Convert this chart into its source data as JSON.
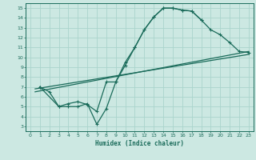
{
  "xlabel": "Humidex (Indice chaleur)",
  "bg_color": "#cce8e2",
  "grid_color": "#aad4cc",
  "line_color": "#1a6b5a",
  "xlim": [
    -0.5,
    23.5
  ],
  "ylim": [
    2.5,
    15.5
  ],
  "xticks": [
    0,
    1,
    2,
    3,
    4,
    5,
    6,
    7,
    8,
    9,
    10,
    11,
    12,
    13,
    14,
    15,
    16,
    17,
    18,
    19,
    20,
    21,
    22,
    23
  ],
  "yticks": [
    3,
    4,
    5,
    6,
    7,
    8,
    9,
    10,
    11,
    12,
    13,
    14,
    15
  ],
  "line1_x": [
    1,
    2,
    3,
    4,
    5,
    6,
    7,
    8,
    9,
    10,
    11,
    12,
    13,
    14,
    15,
    16,
    17,
    18
  ],
  "line1_y": [
    7.0,
    6.5,
    5.0,
    5.0,
    5.0,
    5.3,
    3.2,
    4.8,
    7.5,
    9.5,
    11.0,
    12.8,
    14.1,
    15.0,
    15.0,
    14.8,
    14.7,
    13.8
  ],
  "line2_x": [
    1,
    3,
    4,
    5,
    6,
    7,
    8,
    9,
    10,
    11,
    12,
    13,
    14,
    15,
    16,
    17,
    18,
    19,
    20,
    21,
    22,
    23
  ],
  "line2_y": [
    7.0,
    5.0,
    5.3,
    5.5,
    5.2,
    4.5,
    7.5,
    7.5,
    9.2,
    11.0,
    12.8,
    14.1,
    15.0,
    15.0,
    14.8,
    14.7,
    13.8,
    12.8,
    12.3,
    11.5,
    10.6,
    10.5
  ],
  "line3_x": [
    0.5,
    23
  ],
  "line3_y": [
    6.8,
    10.3
  ],
  "line4_x": [
    0.5,
    23
  ],
  "line4_y": [
    6.5,
    10.6
  ]
}
